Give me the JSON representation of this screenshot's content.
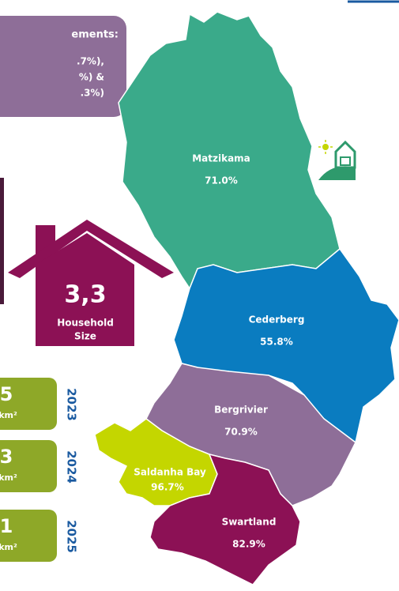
{
  "callout": {
    "lines": [
      "ements:",
      ".7%),",
      "%) &",
      ".3%)"
    ]
  },
  "household": {
    "value": "3,3",
    "label_lines": [
      "Household",
      "Size"
    ]
  },
  "density": [
    {
      "value": "5",
      "unit": "km²",
      "year": "2023"
    },
    {
      "value": "3",
      "unit": "km²",
      "year": "2024"
    },
    {
      "value": "1",
      "unit": "km²",
      "year": "2025"
    }
  ],
  "regions": [
    {
      "name": "Matzikama",
      "value": "71.0%"
    },
    {
      "name": "Cederberg",
      "value": "55.8%"
    },
    {
      "name": "Bergrivier",
      "value": "70.9%"
    },
    {
      "name": "Saldanha Bay",
      "value": "96.7%"
    },
    {
      "name": "Swartland",
      "value": "82.9%"
    }
  ]
}
